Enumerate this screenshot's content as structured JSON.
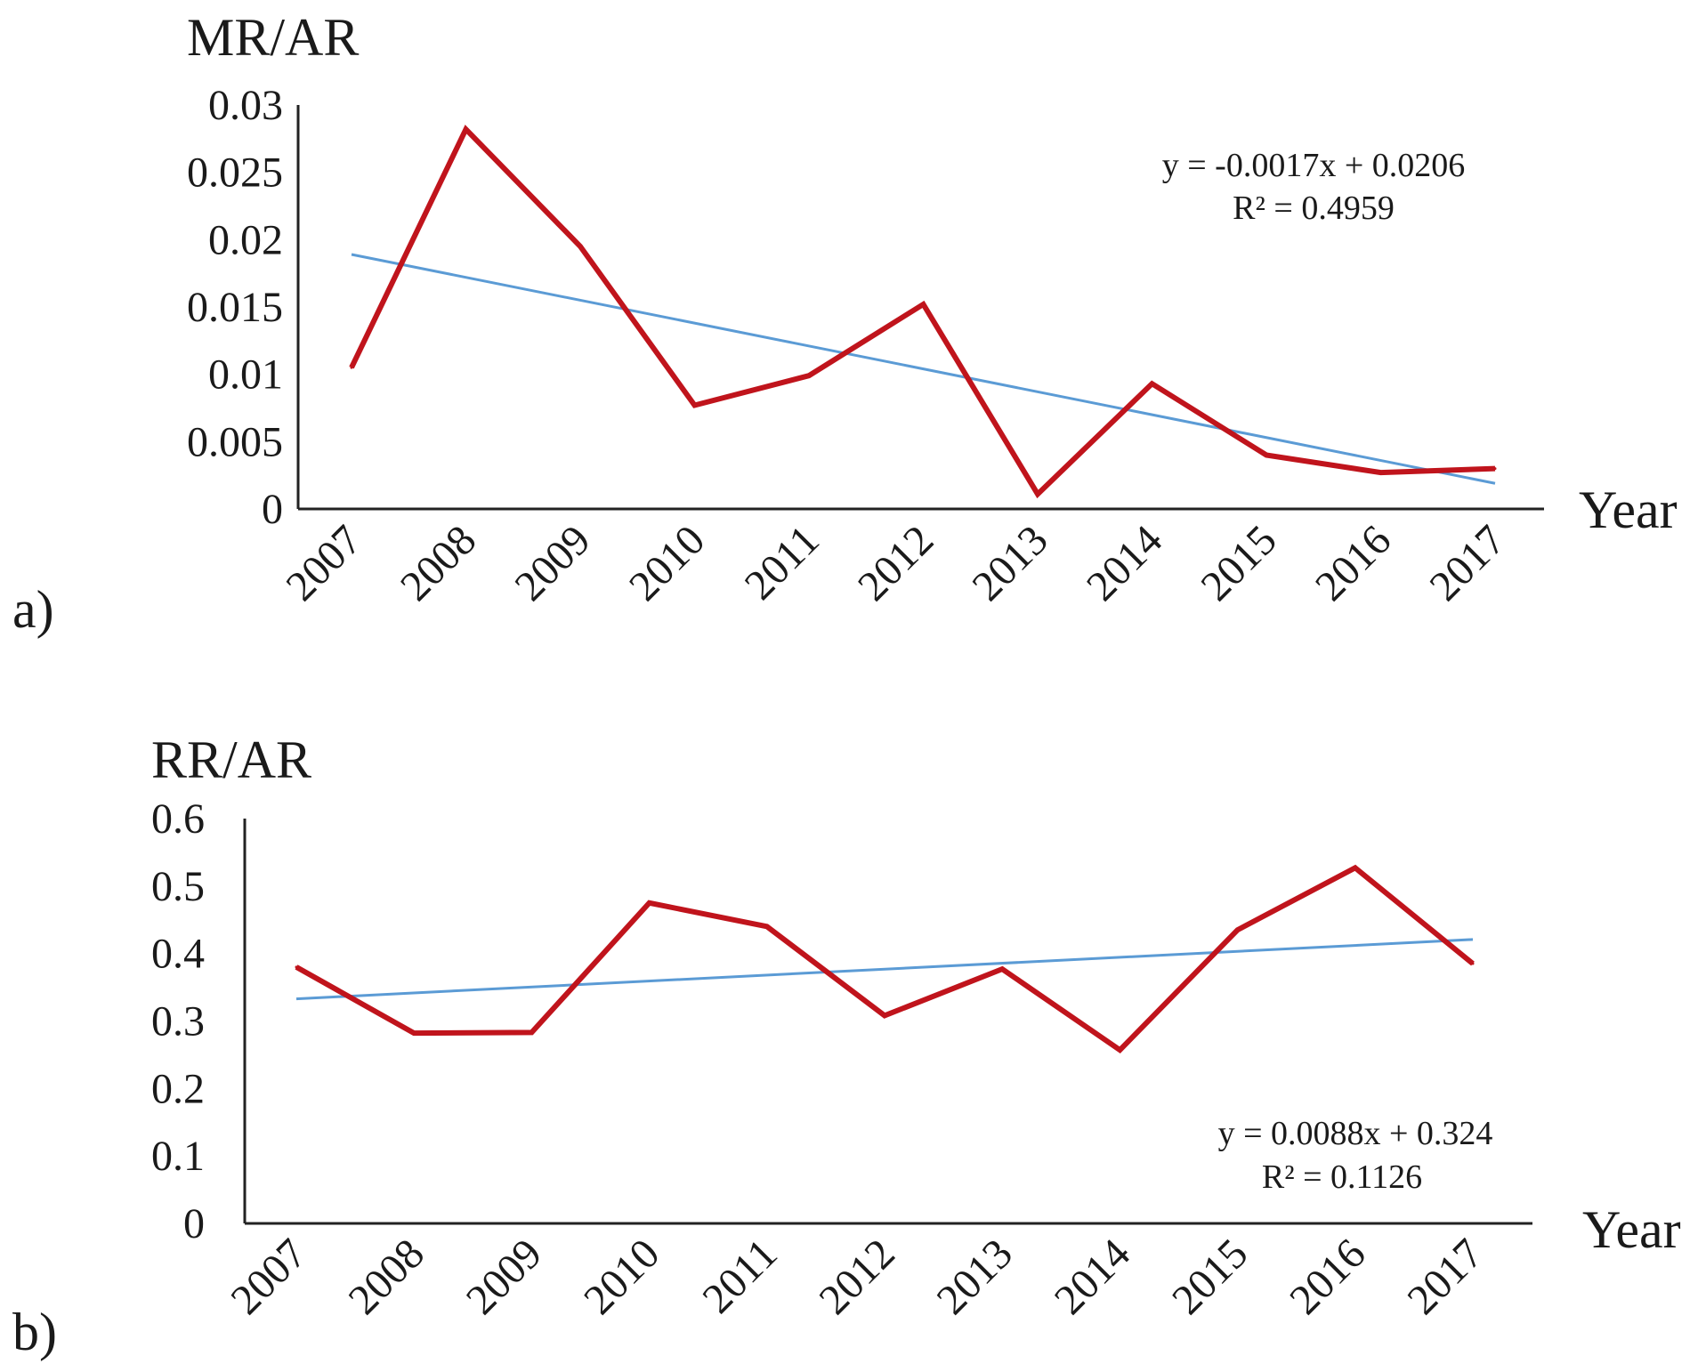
{
  "chart_data": [
    {
      "type": "line",
      "panel_label": "a)",
      "title": "",
      "ylabel": "MR/AR",
      "xlabel": "Year",
      "categories": [
        "2007",
        "2008",
        "2009",
        "2010",
        "2011",
        "2012",
        "2013",
        "2014",
        "2015",
        "2016",
        "2017"
      ],
      "ylim": [
        0,
        0.03
      ],
      "yticks": [
        "0",
        "0.005",
        "0.01",
        "0.015",
        "0.02",
        "0.025",
        "0.03"
      ],
      "series": [
        {
          "name": "MR/AR",
          "color": "#c0141c",
          "values": [
            0.0105,
            0.0282,
            0.0195,
            0.0077,
            0.0099,
            0.0152,
            0.0011,
            0.0093,
            0.004,
            0.0027,
            0.003
          ]
        }
      ],
      "trendline": {
        "color": "#5b9bd5",
        "slope": -0.0017,
        "intercept": 0.0206,
        "equation": "y = -0.0017x + 0.0206",
        "r_squared": "R² = 0.4959",
        "annotation_position": "top-right"
      }
    },
    {
      "type": "line",
      "panel_label": "b)",
      "title": "",
      "ylabel": "RR/AR",
      "xlabel": "Year",
      "categories": [
        "2007",
        "2008",
        "2009",
        "2010",
        "2011",
        "2012",
        "2013",
        "2014",
        "2015",
        "2016",
        "2017"
      ],
      "ylim": [
        0,
        0.6
      ],
      "yticks": [
        "0",
        "0.1",
        "0.2",
        "0.3",
        "0.4",
        "0.5",
        "0.6"
      ],
      "series": [
        {
          "name": "RR/AR",
          "color": "#c0141c",
          "values": [
            0.38,
            0.282,
            0.283,
            0.475,
            0.44,
            0.308,
            0.377,
            0.257,
            0.435,
            0.527,
            0.385
          ]
        }
      ],
      "trendline": {
        "color": "#5b9bd5",
        "slope": 0.0088,
        "intercept": 0.324,
        "equation": "y = 0.0088x + 0.324",
        "r_squared": "R² = 0.1126",
        "annotation_position": "bottom-right"
      }
    }
  ]
}
